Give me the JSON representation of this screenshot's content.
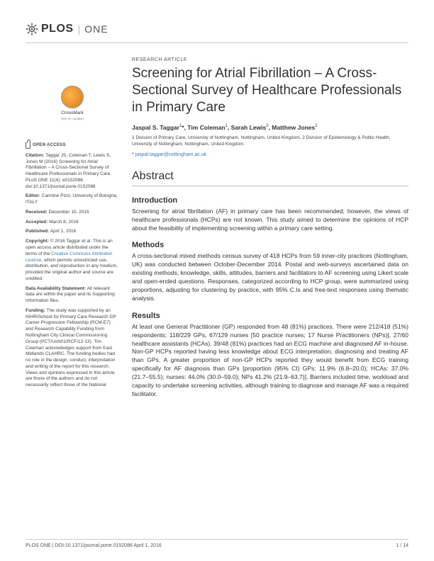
{
  "journal": {
    "publisher": "PLOS",
    "name": "ONE"
  },
  "article": {
    "type": "RESEARCH ARTICLE",
    "title": "Screening for Atrial Fibrillation – A Cross-Sectional Survey of Healthcare Professionals in Primary Care",
    "authors_html": "Jaspal S. Taggar<sup>1</sup>*, Tim Coleman<sup>1</sup>, Sarah Lewis<sup>2</sup>, Matthew Jones<sup>1</sup>",
    "affiliations": "1 Division of Primary Care, University of Nottingham, Nottingham, United Kingdom, 2 Division of Epidemiology & Public Health, University of Nottingham, Nottingham, United Kingdom",
    "corresponding_email": "jaspal.taggar@nottingham.ac.uk",
    "email_prefix": "* "
  },
  "crossmark": {
    "label": "CrossMark",
    "sub": "click for updates"
  },
  "sidebar": {
    "open_access": "OPEN ACCESS",
    "citation_label": "Citation:",
    "citation": "Taggar JS, Coleman T, Lewis S, Jones M (2016) Screening for Atrial Fibrillation – A Cross-Sectional Survey of Healthcare Professionals in Primary Care. PLoS ONE 11(4): e0152086. doi:10.1371/journal.pone.0152086",
    "editor_label": "Editor:",
    "editor": "Carmine Pizzi, University of Bologna, ITALY",
    "received_label": "Received:",
    "received": "December 10, 2015",
    "accepted_label": "Accepted:",
    "accepted": "March 8, 2016",
    "published_label": "Published:",
    "published": "April 1, 2016",
    "copyright_label": "Copyright:",
    "copyright": "© 2016 Taggar et al. This is an open access article distributed under the terms of the ",
    "cc_link": "Creative Commons Attribution License",
    "copyright_tail": ", which permits unrestricted use, distribution, and reproduction in any medium, provided the original author and source are credited.",
    "data_label": "Data Availability Statement:",
    "data": "All relevant data are within the paper and its Supporting Information files.",
    "funding_label": "Funding:",
    "funding": "The study was supported by an NIHR/School for Primary Care Research GP Career Progression Fellowship (RCM-E7) and Research Capability Funding from Nottingham City Clinical Commissioning Group (PCT/UoN01/RCF/12-13). Tim Coleman acknowledges support from East Midlands CLAHRC. The funding bodies had no role in the design, conduct, interpretation and writing of the report for this research. Views and opinions expressed in this article are those of the authors and do not necessarily reflect those of the National"
  },
  "abstract": {
    "heading": "Abstract",
    "sections": [
      {
        "title": "Introduction",
        "text": "Screening for atrial fibrillation (AF) in primary care has been recommended; however, the views of healthcare professionals (HCPs) are not known. This study aimed to determine the opinions of HCP about the feasibility of implementing screening within a primary care setting."
      },
      {
        "title": "Methods",
        "text": "A cross-sectional mixed methods census survey of 418 HCPs from 59 inner-city practices (Nottingham, UK) was conducted between October-December 2014. Postal and web-surveys ascertained data on existing methods, knowledge, skills, attitudes, barriers and facilitators to AF screening using Likert scale and open-ended questions. Responses, categorized according to HCP group, were summarized using proportions, adjusting for clustering by practice, with 95% C.Is and free-text responses using thematic analysis."
      },
      {
        "title": "Results",
        "text": "At least one General Practitioner (GP) responded from 48 (81%) practices. There were 212/418 (51%) respondents; 118/229 GPs, 67/129 nurses [50 practice nurses; 17 Nurse Practitioners (NPs)], 27/60 healthcare assistants (HCAs). 39/48 (81%) practices had an ECG machine and diagnosed AF in-house. Non-GP HCPs reported having less knowledge about ECG interpretation, diagnosing and treating AF than GPs. A greater proportion of non-GP HCPs reported they would benefit from ECG training specifically for AF diagnosis than GPs [proportion (95% CI) GPs: 11.9% (6.8–20.0); HCAs: 37.0% (21.7–55.5); nurses: 44.0% (30.0–59.0); NPs 41.2% (21.9–63.7)]. Barriers included time, workload and capacity to undertake screening activities, although training to diagnose and manage AF was a required facilitator."
      }
    ]
  },
  "footer": {
    "left": "PLOS ONE | DOI:10.1371/journal.pone.0152086    April 1, 2016",
    "right": "1 / 14"
  },
  "colors": {
    "link": "#3c7bb0",
    "text": "#333333",
    "rule": "#cccccc"
  }
}
